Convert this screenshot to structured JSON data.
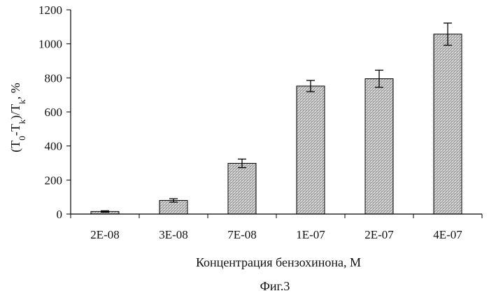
{
  "chart_data": {
    "type": "bar",
    "categories": [
      "2E-08",
      "3E-08",
      "7E-08",
      "1E-07",
      "2E-07",
      "4E-07"
    ],
    "values": [
      15,
      80,
      298,
      752,
      795,
      1057
    ],
    "error": [
      4,
      10,
      25,
      33,
      50,
      65
    ],
    "ylim": [
      0,
      1200
    ],
    "yticks": [
      0,
      200,
      400,
      600,
      800,
      1000,
      1200
    ],
    "xlabel": "Концентрация бензохинона, М",
    "ylabel": {
      "t0": "(T",
      "sub0": "0",
      "t1": "-T",
      "subk1": "k",
      "t2": ")/T",
      "subk2": "k",
      "t3": ", %"
    },
    "bar_fill": "#c8c8c8",
    "grid": false,
    "legend": "none"
  },
  "caption": "Фиг.3"
}
